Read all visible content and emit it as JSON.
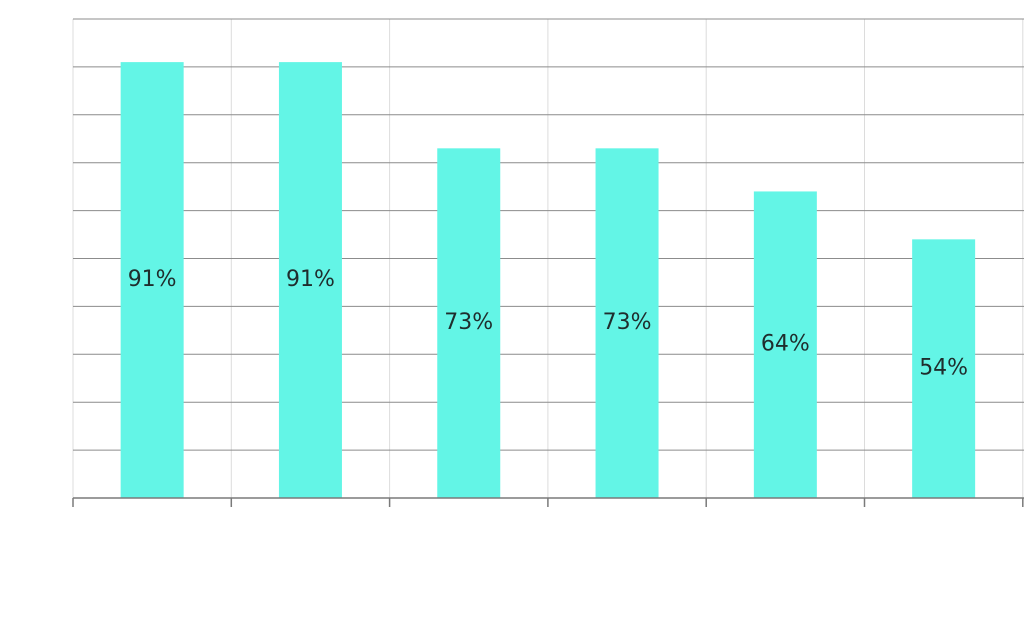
{
  "chart_data": {
    "type": "bar",
    "categories": [
      "",
      "",
      "",
      "",
      "",
      ""
    ],
    "values": [
      91,
      91,
      73,
      73,
      64,
      54
    ],
    "data_labels": [
      "91%",
      "91%",
      "73%",
      "73%",
      "64%",
      "54%"
    ],
    "unit": "%",
    "title": "",
    "xlabel": "",
    "ylabel": "",
    "ylim": [
      0,
      100
    ],
    "grid": {
      "horizontal": true,
      "vertical": true
    },
    "legend": "none"
  },
  "colors": {
    "bar": "#63f5e6",
    "gridline": "#8c8c8c",
    "vertical_gridline": "#dcdcdc",
    "axis": "#7a7a7a",
    "label": "#1f2d2d"
  }
}
